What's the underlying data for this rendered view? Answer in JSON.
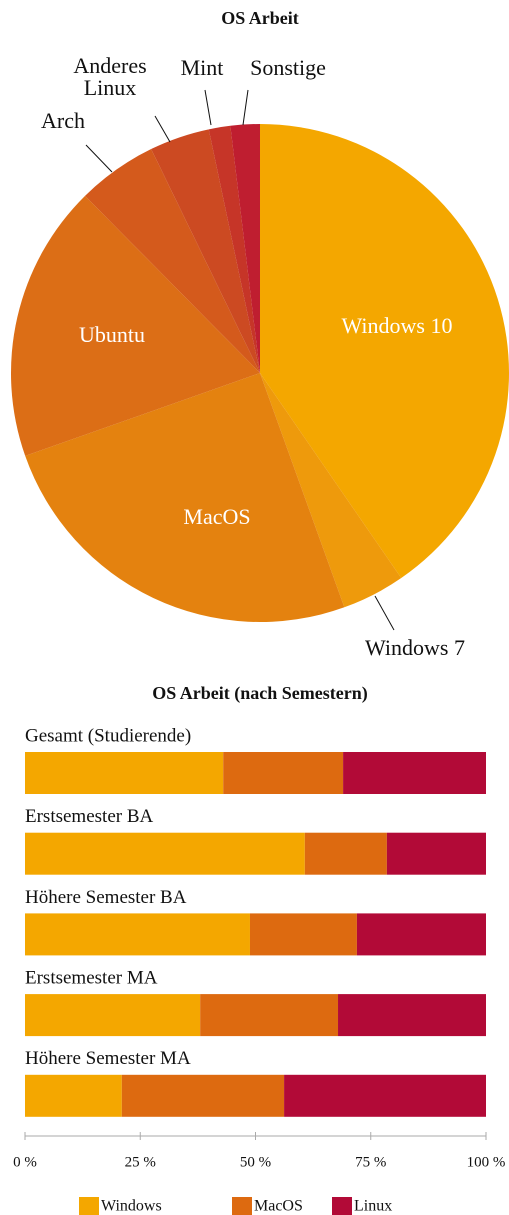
{
  "chart_data": [
    {
      "type": "pie",
      "title": "OS Arbeit",
      "categories": [
        "Windows 10",
        "Windows 7",
        "MacOS",
        "Ubuntu",
        "Arch",
        "Anderes Linux",
        "Mint",
        "Sonstige"
      ],
      "values": [
        40.4,
        4.1,
        25.1,
        18,
        5.2,
        3.9,
        1.4,
        1.9
      ],
      "colors": [
        "#f4a700",
        "#ee9a0c",
        "#e4820f",
        "#dc6e16",
        "#d45a1c",
        "#cc4a22",
        "#c63528",
        "#bf1e30"
      ]
    },
    {
      "type": "bar",
      "orientation": "horizontal",
      "stacked": true,
      "title": "OS Arbeit (nach Semestern)",
      "categories": [
        "Gesamt (Studierende)",
        "Erstsemester BA",
        "Höhere Semester BA",
        "Erstsemester MA",
        "Höhere Semester MA"
      ],
      "series": [
        {
          "name": "Windows",
          "color": "#f4a700",
          "values": [
            43,
            60.7,
            48.8,
            38,
            21
          ]
        },
        {
          "name": "MacOS",
          "color": "#dd6a10",
          "values": [
            26,
            17.8,
            23.2,
            29.9,
            35.2
          ]
        },
        {
          "name": "Linux",
          "color": "#b20a37",
          "values": [
            31,
            21.5,
            28,
            32.1,
            43.8
          ]
        }
      ],
      "xlim": [
        0,
        100
      ],
      "xticks": [
        {
          "value": 0,
          "label": "0 %"
        },
        {
          "value": 25,
          "label": "25 %"
        },
        {
          "value": 50,
          "label": "50 %"
        },
        {
          "value": 75,
          "label": "75 %"
        },
        {
          "value": 100,
          "label": "100 %"
        }
      ],
      "legend": "bottom"
    }
  ]
}
